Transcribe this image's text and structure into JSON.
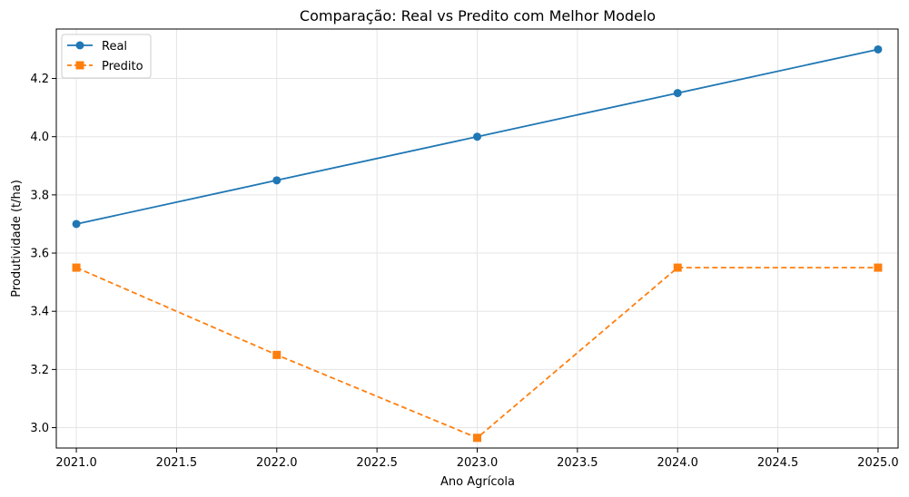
{
  "chart_data": {
    "type": "line",
    "title": "Comparação: Real vs Predito com Melhor Modelo",
    "xlabel": "Ano Agrícola",
    "ylabel": "Produtividade (t/ha)",
    "xlim": [
      2020.9,
      2025.1
    ],
    "ylim": [
      2.93,
      4.37
    ],
    "x_ticks": [
      2021.0,
      2021.5,
      2022.0,
      2022.5,
      2023.0,
      2023.5,
      2024.0,
      2024.5,
      2025.0
    ],
    "x_tick_labels": [
      "2021.0",
      "2021.5",
      "2022.0",
      "2022.5",
      "2023.0",
      "2023.5",
      "2024.0",
      "2024.5",
      "2025.0"
    ],
    "y_ticks": [
      3.0,
      3.2,
      3.4,
      3.6,
      3.8,
      4.0,
      4.2
    ],
    "y_tick_labels": [
      "3.0",
      "3.2",
      "3.4",
      "3.6",
      "3.8",
      "4.0",
      "4.2"
    ],
    "grid": true,
    "legend_position": "top-left",
    "x": [
      2021,
      2022,
      2023,
      2024,
      2025
    ],
    "series": [
      {
        "name": "Real",
        "values": [
          3.7,
          3.85,
          4.0,
          4.15,
          4.3
        ],
        "color": "#1f77b4",
        "linestyle": "solid",
        "marker": "circle"
      },
      {
        "name": "Predito",
        "values": [
          3.55,
          3.25,
          2.965,
          3.55,
          3.55
        ],
        "color": "#ff7f0e",
        "linestyle": "dashed",
        "marker": "square"
      }
    ]
  }
}
